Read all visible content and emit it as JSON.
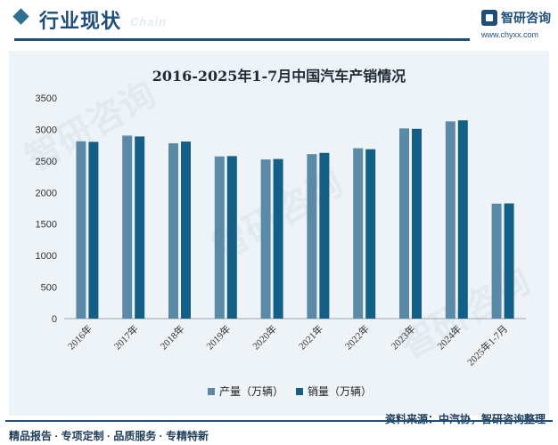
{
  "header": {
    "title": "行业现状",
    "subtitle_watermark": "Chain",
    "brand_name": "智研咨询",
    "brand_url": "www.chyxx.com"
  },
  "watermark_text": "智研咨询",
  "chart_data": {
    "type": "bar",
    "title": "2016-2025年1-7月中国汽车产销情况",
    "categories": [
      "2016年",
      "2017年",
      "2018年",
      "2019年",
      "2020年",
      "2021年",
      "2022年",
      "2023年",
      "2024年",
      "2025年1-7月"
    ],
    "series": [
      {
        "name": "产量（万辆）",
        "color": "#5b8aa6",
        "values": [
          2812,
          2902,
          2781,
          2572,
          2523,
          2608,
          2702,
          3016,
          3128,
          1823
        ]
      },
      {
        "name": "销量（万辆）",
        "color": "#135f85",
        "values": [
          2803,
          2888,
          2808,
          2577,
          2531,
          2628,
          2686,
          3009,
          3144,
          1827
        ]
      }
    ],
    "yticks": [
      0,
      500,
      1000,
      1500,
      2000,
      2500,
      3000,
      3500
    ],
    "ylim": [
      0,
      3500
    ],
    "xlabel": "",
    "ylabel": "",
    "legend_position": "bottom-center"
  },
  "footer": {
    "left_text": "精品报告 · 专项定制 · 品质服务 · 专精特新",
    "source_text": "资料来源：中汽协，智研咨询整理"
  }
}
